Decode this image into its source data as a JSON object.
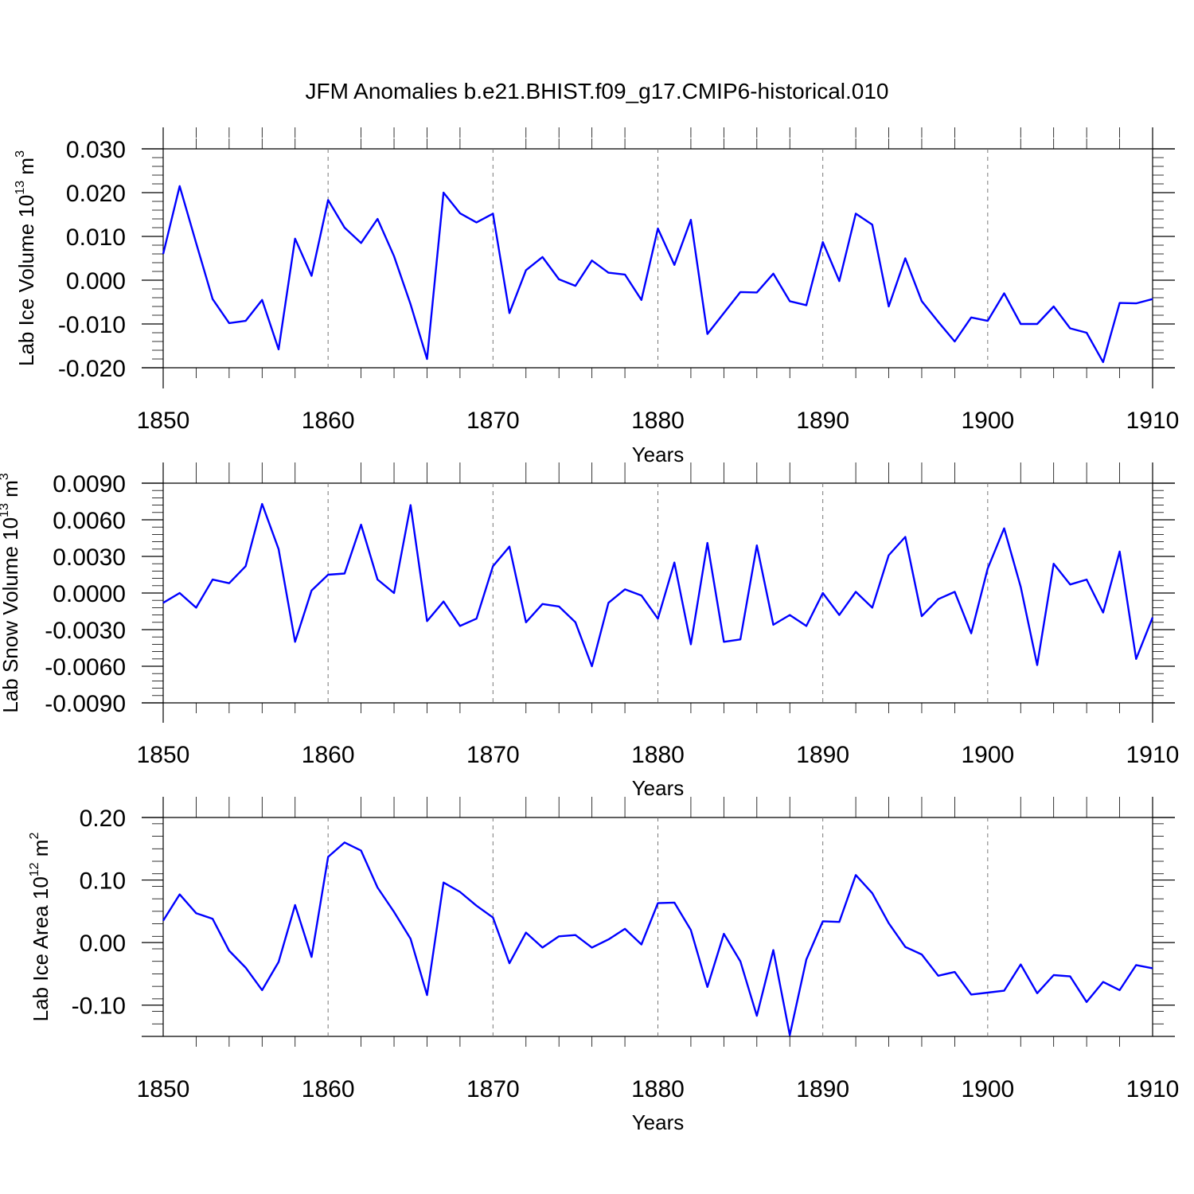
{
  "title": "JFM Anomalies b.e21.BHIST.f09_g17.CMIP6-historical.010",
  "line_color": "#0000ff",
  "chart_data": [
    {
      "type": "line",
      "series_name": "Lab Ice Volume",
      "ylabel": "Lab Ice Volume 10",
      "ylabel_exp": "13",
      "ylabel_unit": " m",
      "ylabel_unit_exp": "3",
      "xlabel": "Years",
      "xlim": [
        1850,
        1910
      ],
      "ylim": [
        -0.02,
        0.03
      ],
      "yticks": [
        -0.02,
        -0.01,
        0.0,
        0.01,
        0.02,
        0.03
      ],
      "ytick_labels": [
        "-0.020",
        "-0.010",
        "0.000",
        "0.010",
        "0.020",
        "0.030"
      ],
      "xticks": [
        1850,
        1860,
        1870,
        1880,
        1890,
        1900,
        1910
      ],
      "xtick_labels": [
        "1850",
        "1860",
        "1870",
        "1880",
        "1890",
        "1900",
        "1910"
      ],
      "x": [
        1850,
        1851,
        1852,
        1853,
        1854,
        1855,
        1856,
        1857,
        1858,
        1859,
        1860,
        1861,
        1862,
        1863,
        1864,
        1865,
        1866,
        1867,
        1868,
        1869,
        1870,
        1871,
        1872,
        1873,
        1874,
        1875,
        1876,
        1877,
        1878,
        1879,
        1880,
        1881,
        1882,
        1883,
        1884,
        1885,
        1886,
        1887,
        1888,
        1889,
        1890,
        1891,
        1892,
        1893,
        1894,
        1895,
        1896,
        1897,
        1898,
        1899,
        1900,
        1901,
        1902,
        1903,
        1904,
        1905,
        1906,
        1907,
        1908,
        1909,
        1910
      ],
      "values": [
        0.006,
        0.0215,
        0.0085,
        -0.0043,
        -0.0098,
        -0.0093,
        -0.0045,
        -0.0158,
        0.0095,
        0.001,
        0.0183,
        0.012,
        0.0085,
        0.014,
        0.0055,
        -0.0055,
        -0.018,
        0.02,
        0.0153,
        0.0132,
        0.0152,
        -0.0075,
        0.0023,
        0.0053,
        0.0002,
        -0.0013,
        0.0045,
        0.0017,
        0.0013,
        -0.0045,
        0.0118,
        0.0035,
        0.0138,
        -0.0123,
        -0.0075,
        -0.0027,
        -0.0028,
        0.0015,
        -0.0048,
        -0.0057,
        0.0087,
        -0.0002,
        0.0152,
        0.0127,
        -0.006,
        0.005,
        -0.0048,
        -0.0095,
        -0.014,
        -0.0085,
        -0.0093,
        -0.003,
        -0.01,
        -0.01,
        -0.006,
        -0.011,
        -0.012,
        -0.0187,
        -0.0052,
        -0.0053,
        -0.0043
      ]
    },
    {
      "type": "line",
      "series_name": "Lab Snow Volume",
      "ylabel": "Lab Snow Volume 10",
      "ylabel_exp": "13",
      "ylabel_unit": " m",
      "ylabel_unit_exp": "3",
      "xlabel": "Years",
      "xlim": [
        1850,
        1910
      ],
      "ylim": [
        -0.009,
        0.009
      ],
      "yticks": [
        -0.009,
        -0.006,
        -0.003,
        0.0,
        0.003,
        0.006,
        0.009
      ],
      "ytick_labels": [
        "-0.0090",
        "-0.0060",
        "-0.0030",
        "0.0000",
        "0.0030",
        "0.0060",
        "0.0090"
      ],
      "xticks": [
        1850,
        1860,
        1870,
        1880,
        1890,
        1900,
        1910
      ],
      "xtick_labels": [
        "1850",
        "1860",
        "1870",
        "1880",
        "1890",
        "1900",
        "1910"
      ],
      "x": [
        1850,
        1851,
        1852,
        1853,
        1854,
        1855,
        1856,
        1857,
        1858,
        1859,
        1860,
        1861,
        1862,
        1863,
        1864,
        1865,
        1866,
        1867,
        1868,
        1869,
        1870,
        1871,
        1872,
        1873,
        1874,
        1875,
        1876,
        1877,
        1878,
        1879,
        1880,
        1881,
        1882,
        1883,
        1884,
        1885,
        1886,
        1887,
        1888,
        1889,
        1890,
        1891,
        1892,
        1893,
        1894,
        1895,
        1896,
        1897,
        1898,
        1899,
        1900,
        1901,
        1902,
        1903,
        1904,
        1905,
        1906,
        1907,
        1908,
        1909,
        1910
      ],
      "values": [
        -0.0008,
        0.0,
        -0.0012,
        0.0011,
        0.0008,
        0.0022,
        0.0073,
        0.0036,
        -0.004,
        0.0002,
        0.0015,
        0.0016,
        0.0056,
        0.0011,
        0.0,
        0.0072,
        -0.0023,
        -0.0007,
        -0.0027,
        -0.0021,
        0.0022,
        0.0038,
        -0.0024,
        -0.0009,
        -0.0011,
        -0.0024,
        -0.006,
        -0.0008,
        0.0003,
        -0.0002,
        -0.0021,
        0.0025,
        -0.0042,
        0.0041,
        -0.004,
        -0.0038,
        0.0039,
        -0.0026,
        -0.0018,
        -0.0027,
        0.0,
        -0.0018,
        0.0001,
        -0.0012,
        0.0031,
        0.0046,
        -0.0019,
        -0.0005,
        0.0001,
        -0.0033,
        0.002,
        0.0053,
        0.0005,
        -0.0059,
        0.0024,
        0.0007,
        0.0011,
        -0.0016,
        0.0034,
        -0.0054,
        -0.002
      ]
    },
    {
      "type": "line",
      "series_name": "Lab Ice Area",
      "ylabel": "Lab Ice Area 10",
      "ylabel_exp": "12",
      "ylabel_unit": " m",
      "ylabel_unit_exp": "2",
      "xlabel": "Years",
      "xlim": [
        1850,
        1910
      ],
      "ylim": [
        -0.15,
        0.2
      ],
      "yticks": [
        -0.1,
        0.0,
        0.1,
        0.2
      ],
      "ytick_labels": [
        "-0.10",
        "0.00",
        "0.10",
        "0.20"
      ],
      "xticks": [
        1850,
        1860,
        1870,
        1880,
        1890,
        1900,
        1910
      ],
      "xtick_labels": [
        "1850",
        "1860",
        "1870",
        "1880",
        "1890",
        "1900",
        "1910"
      ],
      "x": [
        1850,
        1851,
        1852,
        1853,
        1854,
        1855,
        1856,
        1857,
        1858,
        1859,
        1860,
        1861,
        1862,
        1863,
        1864,
        1865,
        1866,
        1867,
        1868,
        1869,
        1870,
        1871,
        1872,
        1873,
        1874,
        1875,
        1876,
        1877,
        1878,
        1879,
        1880,
        1881,
        1882,
        1883,
        1884,
        1885,
        1886,
        1887,
        1888,
        1889,
        1890,
        1891,
        1892,
        1893,
        1894,
        1895,
        1896,
        1897,
        1898,
        1899,
        1900,
        1901,
        1902,
        1903,
        1904,
        1905,
        1906,
        1907,
        1908,
        1909,
        1910
      ],
      "values": [
        0.035,
        0.077,
        0.047,
        0.038,
        -0.013,
        -0.04,
        -0.076,
        -0.031,
        0.06,
        -0.023,
        0.137,
        0.16,
        0.147,
        0.088,
        0.049,
        0.006,
        -0.084,
        0.096,
        0.081,
        0.059,
        0.04,
        -0.033,
        0.016,
        -0.008,
        0.01,
        0.012,
        -0.008,
        0.005,
        0.022,
        -0.003,
        0.063,
        0.064,
        0.02,
        -0.071,
        0.014,
        -0.03,
        -0.117,
        -0.012,
        -0.148,
        -0.027,
        0.034,
        0.033,
        0.108,
        0.079,
        0.031,
        -0.007,
        -0.019,
        -0.053,
        -0.047,
        -0.083,
        -0.08,
        -0.077,
        -0.035,
        -0.081,
        -0.052,
        -0.054,
        -0.095,
        -0.063,
        -0.076,
        -0.036,
        -0.041
      ]
    }
  ]
}
